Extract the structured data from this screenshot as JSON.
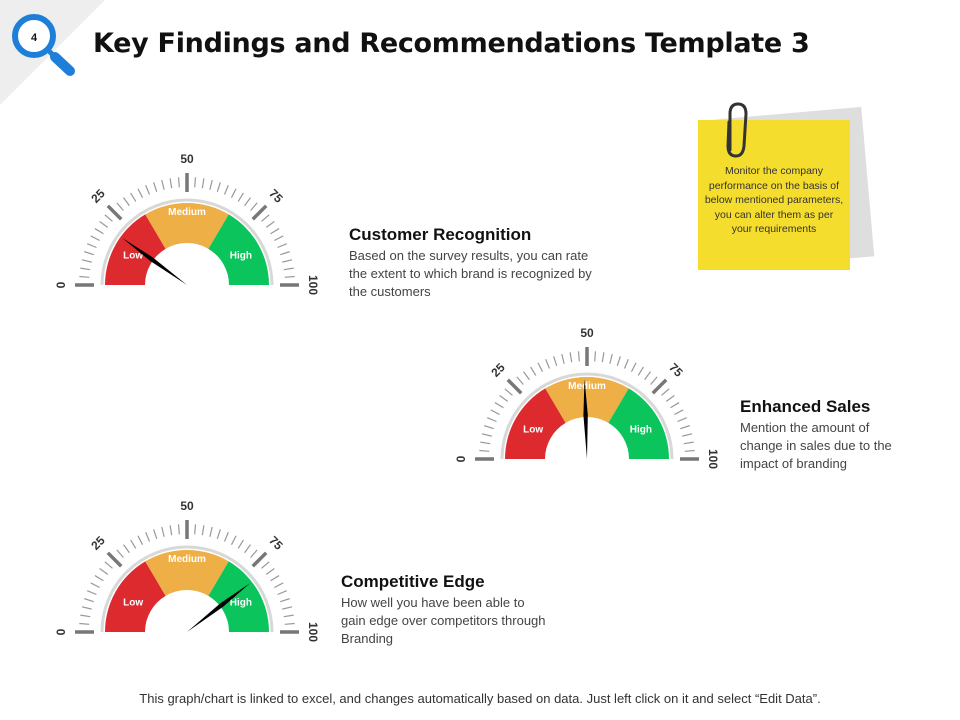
{
  "slide": {
    "number": "4",
    "title": "Key Findings and Recommendations Template 3",
    "footer": "This graph/chart is linked to excel, and changes automatically based on data. Just left click on it and select “Edit Data”."
  },
  "note": {
    "text": "Monitor the company performance on the basis of below mentioned parameters, you can alter them as per your requirements",
    "icon": "paperclip-icon"
  },
  "colors": {
    "low": "#dd2a2e",
    "medium": "#eeaf46",
    "high": "#0cc45c",
    "ticks": "#777777",
    "needle": "#000000",
    "accent": "#1e7fd8",
    "note_bg": "#f5dd2d"
  },
  "gauges": [
    {
      "title": "Customer Recognition",
      "description": "Based on the survey results, you can rate the extent to which brand is recognized by the customers",
      "value": 20
    },
    {
      "title": "Enhanced Sales",
      "description": "Mention the amount of change in sales due to the impact of branding",
      "value": 49
    },
    {
      "title": "Competitive Edge",
      "description": "How well you have been able to gain edge over competitors through Branding",
      "value": 79
    }
  ],
  "chart_data": [
    {
      "type": "gauge",
      "title": "Customer Recognition",
      "value": 20,
      "range": [
        0,
        100
      ],
      "tick_labels": [
        "0",
        "25",
        "50",
        "75",
        "100"
      ],
      "bands": [
        {
          "label": "Low",
          "from": 0,
          "to": 33
        },
        {
          "label": "Medium",
          "from": 33,
          "to": 67
        },
        {
          "label": "High",
          "from": 67,
          "to": 100
        }
      ]
    },
    {
      "type": "gauge",
      "title": "Enhanced Sales",
      "value": 49,
      "range": [
        0,
        100
      ],
      "tick_labels": [
        "0",
        "25",
        "50",
        "75",
        "100"
      ],
      "bands": [
        {
          "label": "Low",
          "from": 0,
          "to": 33
        },
        {
          "label": "Medium",
          "from": 33,
          "to": 67
        },
        {
          "label": "High",
          "from": 67,
          "to": 100
        }
      ]
    },
    {
      "type": "gauge",
      "title": "Competitive Edge",
      "value": 79,
      "range": [
        0,
        100
      ],
      "tick_labels": [
        "0",
        "25",
        "50",
        "75",
        "100"
      ],
      "bands": [
        {
          "label": "Low",
          "from": 0,
          "to": 33
        },
        {
          "label": "Medium",
          "from": 33,
          "to": 67
        },
        {
          "label": "High",
          "from": 67,
          "to": 100
        }
      ]
    }
  ]
}
